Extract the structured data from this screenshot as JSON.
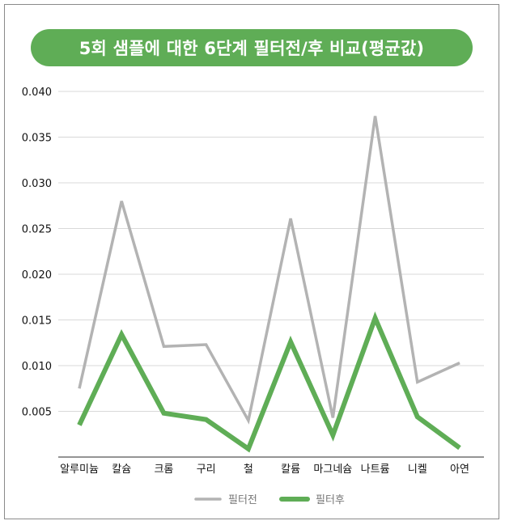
{
  "chart_data": {
    "type": "line",
    "title": "5회 샘플에 대한 6단계 필터전/후 비교(평균값)",
    "categories": [
      "알루미늄",
      "칼슘",
      "크롬",
      "구리",
      "철",
      "칼륨",
      "마그네슘",
      "나트륨",
      "니켈",
      "아연"
    ],
    "series": [
      {
        "name": "필터전",
        "color": "#b3b3b3",
        "values": [
          0.0075,
          0.028,
          0.0121,
          0.0123,
          0.004,
          0.0261,
          0.0043,
          0.0373,
          0.0082,
          0.0103
        ]
      },
      {
        "name": "필터후",
        "color": "#5fad56",
        "values": [
          0.0035,
          0.0134,
          0.0048,
          0.0041,
          0.0009,
          0.0126,
          0.0024,
          0.0152,
          0.0044,
          0.001
        ]
      }
    ],
    "y_ticks": [
      "0.005",
      "0.010",
      "0.015",
      "0.020",
      "0.025",
      "0.030",
      "0.035",
      "0.040"
    ],
    "ylim": [
      0,
      0.04
    ],
    "grid": true,
    "legend_position": "bottom-center"
  }
}
